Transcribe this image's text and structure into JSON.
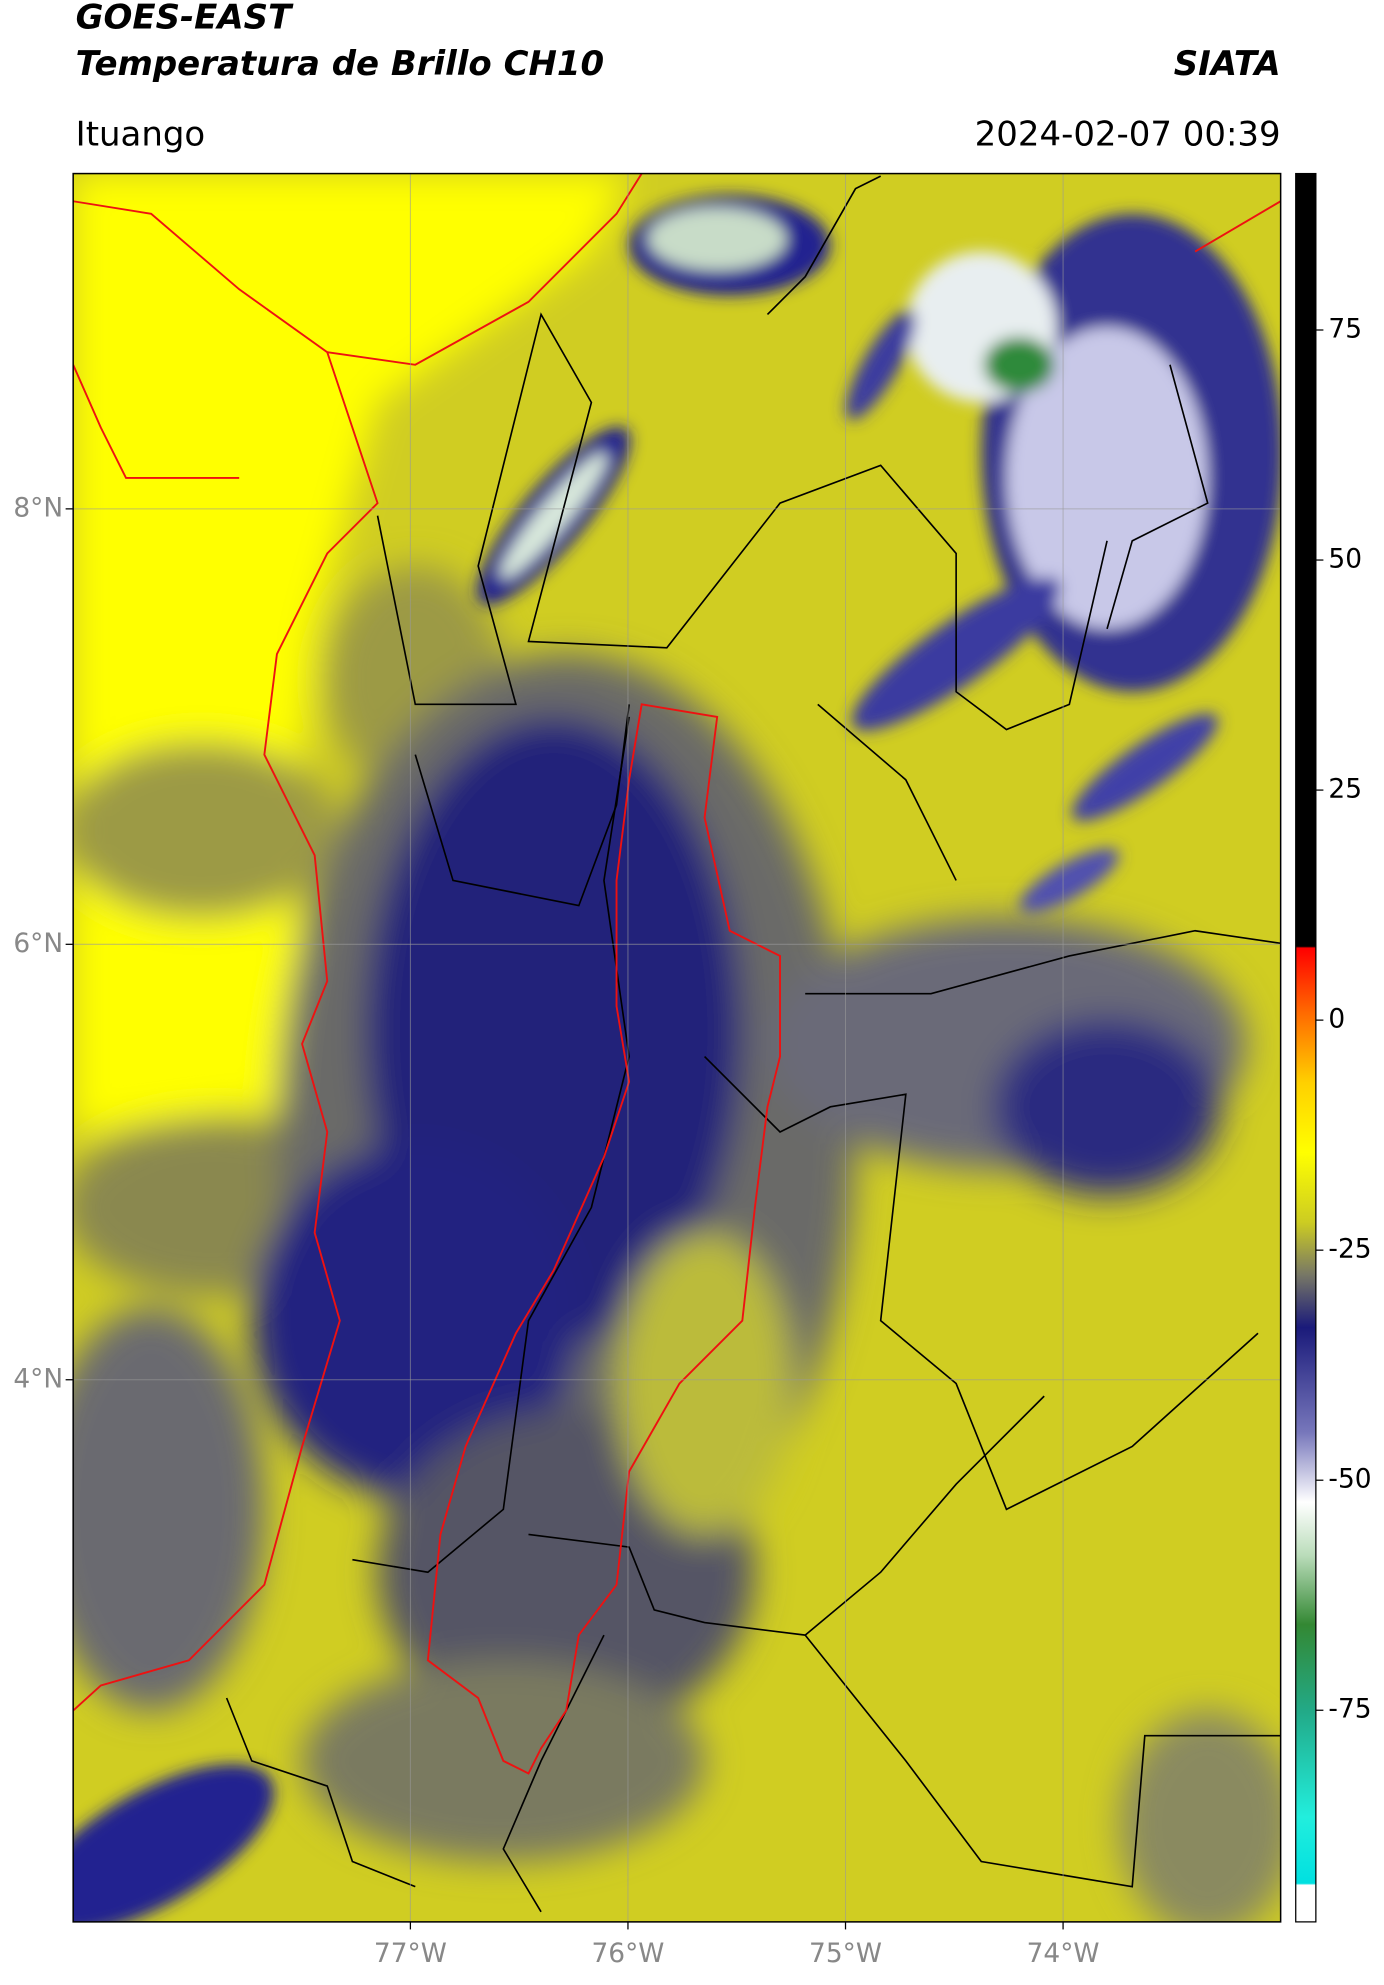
{
  "header": {
    "title": "GOES-EAST",
    "subtitle": "Temperatura de Brillo CH10",
    "source": "SIATA",
    "location": "Ituango",
    "datetime": "2024-02-07 00:39"
  },
  "map": {
    "xlim": [
      -78.55,
      -73.0
    ],
    "ylim": [
      1.51,
      9.54
    ],
    "xticks": [
      {
        "value": -77,
        "label": "77°W"
      },
      {
        "value": -76,
        "label": "76°W"
      },
      {
        "value": -75,
        "label": "75°W"
      },
      {
        "value": -74,
        "label": "74°W"
      }
    ],
    "yticks": [
      {
        "value": 8,
        "label": "8°N"
      },
      {
        "value": 6,
        "label": "6°N"
      },
      {
        "value": 4,
        "label": "4°N"
      }
    ],
    "grid": true
  },
  "colorbar": {
    "lim": [
      -98,
      92
    ],
    "ticks": [
      75,
      50,
      25,
      0,
      -25,
      -50,
      -75
    ]
  }
}
